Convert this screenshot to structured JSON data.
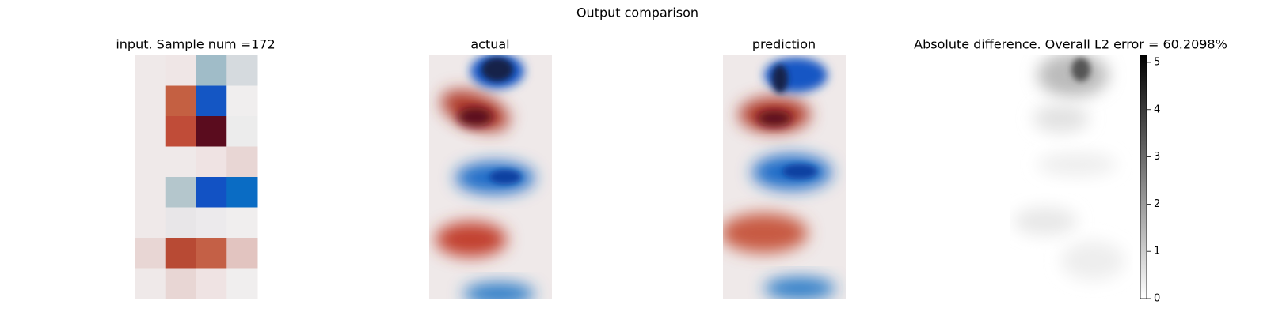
{
  "title": "Output comparison",
  "panels": [
    {
      "title": "input. Sample num =172"
    },
    {
      "title": "actual"
    },
    {
      "title": "prediction"
    },
    {
      "title": "Absolute difference. Overall L2 error = 60.2098%"
    }
  ],
  "colorbar": {
    "ylim": [
      0,
      5.15
    ],
    "yticks": [
      0,
      1,
      2,
      3,
      4,
      5
    ]
  }
}
